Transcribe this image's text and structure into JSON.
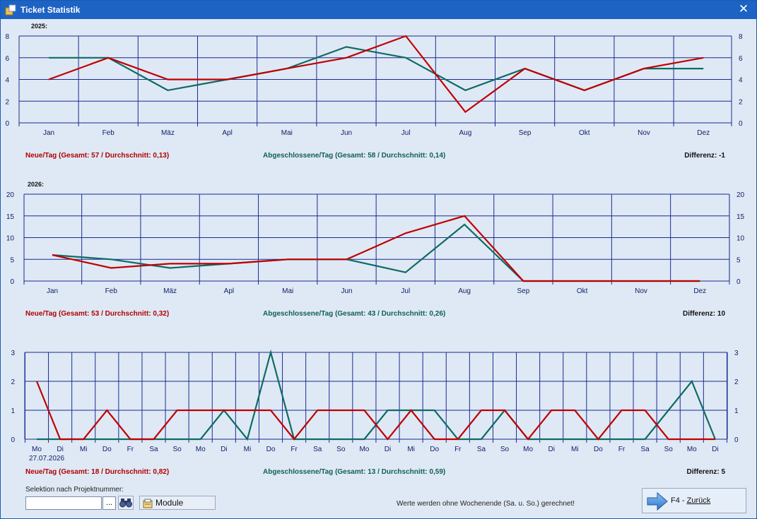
{
  "window": {
    "title": "Ticket Statistik",
    "close_glyph": "✕",
    "icon": "app-icon"
  },
  "colors": {
    "new": "#c00000",
    "closed": "#0f6b66",
    "grid": "#1a2b8f",
    "plot_bg": "#dfe9f5"
  },
  "charts": [
    {
      "year": "2025:",
      "stats": {
        "new": "Neue/Tag (Gesamt: 57 / Durchschnitt: 0,13)",
        "closed": "Abgeschlossene/Tag (Gesamt: 58 / Durchschnitt: 0,14)",
        "diff": "Differenz: -1"
      }
    },
    {
      "year": "2026:",
      "stats": {
        "new": "Neue/Tag (Gesamt: 53 / Durchschnitt: 0,32)",
        "closed": "Abgeschlossene/Tag (Gesamt: 43 / Durchschnitt: 0,26)",
        "diff": "Differenz: 10"
      }
    },
    {
      "year": "",
      "date_label": "27.07.2026",
      "stats": {
        "new": "Neue/Tag (Gesamt: 18 / Durchschnitt: 0,82)",
        "closed": "Abgeschlossene/Tag (Gesamt: 13 / Durchschnitt: 0,59)",
        "diff": "Differenz: 5"
      }
    }
  ],
  "chart_data": [
    {
      "type": "line",
      "categories": [
        "Jan",
        "Feb",
        "Mäz",
        "Apl",
        "Mai",
        "Jun",
        "Jul",
        "Aug",
        "Sep",
        "Okt",
        "Nov",
        "Dez"
      ],
      "ylim": [
        0,
        8
      ],
      "yticks": [
        0,
        2,
        4,
        6,
        8
      ],
      "grid": true,
      "series": [
        {
          "key": "closed",
          "values": [
            6,
            6,
            3,
            4,
            5,
            7,
            6,
            3,
            5,
            3,
            5,
            5
          ]
        },
        {
          "key": "new",
          "values": [
            4,
            6,
            4,
            4,
            5,
            6,
            8,
            1,
            5,
            3,
            5,
            6
          ]
        }
      ]
    },
    {
      "type": "line",
      "categories": [
        "Jan",
        "Feb",
        "Mäz",
        "Apl",
        "Mai",
        "Jun",
        "Jul",
        "Aug",
        "Sep",
        "Okt",
        "Nov",
        "Dez"
      ],
      "ylim": [
        0,
        20
      ],
      "yticks": [
        0,
        5,
        10,
        15,
        20
      ],
      "grid": true,
      "series": [
        {
          "key": "closed",
          "values": [
            6,
            5,
            3,
            4,
            5,
            5,
            2,
            13,
            0,
            0,
            0,
            0
          ]
        },
        {
          "key": "new",
          "values": [
            6,
            3,
            4,
            4,
            5,
            5,
            11,
            15,
            0,
            0,
            0,
            0
          ]
        }
      ]
    },
    {
      "type": "line",
      "categories": [
        "Mo",
        "Di",
        "Mi",
        "Do",
        "Fr",
        "Sa",
        "So",
        "Mo",
        "Di",
        "Mi",
        "Do",
        "Fr",
        "Sa",
        "So",
        "Mo",
        "Di",
        "Mi",
        "Do",
        "Fr",
        "Sa",
        "So",
        "Mo",
        "Di",
        "Mi",
        "Do",
        "Fr",
        "Sa",
        "So",
        "Mo",
        "Di"
      ],
      "ylim": [
        0,
        3
      ],
      "yticks": [
        0,
        1,
        2,
        3
      ],
      "grid": true,
      "series": [
        {
          "key": "closed",
          "values": [
            0,
            0,
            0,
            0,
            0,
            0,
            0,
            0,
            1,
            0,
            3,
            0,
            0,
            0,
            0,
            1,
            1,
            1,
            0,
            0,
            1,
            0,
            0,
            0,
            0,
            0,
            0,
            1,
            2,
            0
          ]
        },
        {
          "key": "new",
          "values": [
            2,
            0,
            0,
            1,
            0,
            0,
            1,
            1,
            1,
            1,
            1,
            0,
            1,
            1,
            1,
            0,
            1,
            0,
            0,
            1,
            1,
            0,
            1,
            1,
            0,
            1,
            1,
            0,
            0,
            0
          ]
        }
      ]
    }
  ],
  "selection": {
    "label": "Selektion nach Projektnummer:",
    "input_value": "",
    "dots_label": "...",
    "module_label": "Module"
  },
  "footer": {
    "note": "Werte werden ohne Wochenende (Sa. u. So.) gerechnet!",
    "back_key": "F4 - ",
    "back_label": "Zurück"
  }
}
